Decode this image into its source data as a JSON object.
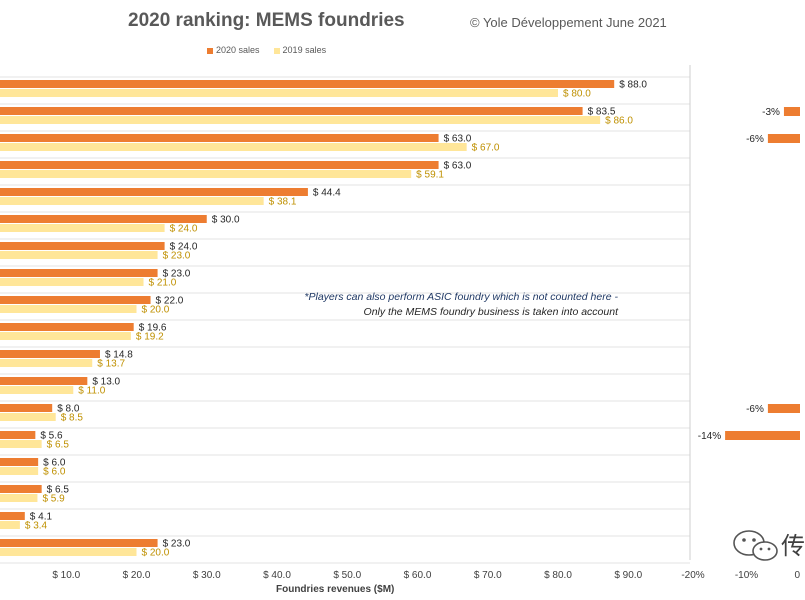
{
  "chart_data": [
    {
      "type": "bar",
      "orientation": "horizontal",
      "title": "2020 ranking: MEMS foundries",
      "credit": "© Yole Développement June 2021",
      "xlabel": "Foundries revenues ($M)",
      "xlim": [
        0,
        100
      ],
      "x_ticks": [
        "$ 10.0",
        "$ 20.0",
        "$ 30.0",
        "$ 40.0",
        "$ 50.0",
        "$ 60.0",
        "$ 70.0",
        "$ 80.0",
        "$ 90.0"
      ],
      "grid": true,
      "legend_position": "top",
      "series": [
        {
          "name": "2020 sales",
          "color": "#ed7d31",
          "values": [
            88.0,
            83.5,
            63.0,
            63.0,
            44.4,
            30.0,
            24.0,
            23.0,
            22.0,
            19.6,
            14.8,
            13.0,
            8.0,
            5.6,
            6.0,
            6.5,
            4.1,
            23.0
          ],
          "labels": [
            "$ 88.0",
            "$ 83.5",
            "$ 63.0",
            "$ 63.0",
            "$ 44.4",
            "$ 30.0",
            "$ 24.0",
            "$ 23.0",
            "$ 22.0",
            "$ 19.6",
            "$ 14.8",
            "$ 13.0",
            "$ 8.0",
            "$ 5.6",
            "$ 6.0",
            "$ 6.5",
            "$ 4.1",
            "$ 23.0"
          ]
        },
        {
          "name": "2019 sales",
          "color": "#ffe699",
          "values": [
            80.0,
            86.0,
            67.0,
            59.1,
            38.1,
            24.0,
            23.0,
            21.0,
            20.0,
            19.2,
            13.7,
            11.0,
            8.5,
            6.5,
            6.0,
            5.9,
            3.4,
            20.0
          ],
          "labels": [
            "$ 80.0",
            "$ 86.0",
            "$ 67.0",
            "$ 59.1",
            "$ 38.1",
            "$ 24.0",
            "$ 23.0",
            "$ 21.0",
            "$ 20.0",
            "$ 19.2",
            "$ 13.7",
            "$ 11.0",
            "$ 8.5",
            "$ 6.5",
            "$ 6.0",
            "$ 5.9",
            "$ 3.4",
            "$ 20.0"
          ]
        }
      ],
      "annotations": [
        "*Players can also perform ASIC foundry which is not counted here -",
        "Only the MEMS foundry business is taken into account"
      ]
    },
    {
      "type": "bar",
      "orientation": "horizontal",
      "xlim": [
        -20,
        0
      ],
      "x_ticks": [
        "-20%",
        "-10%",
        "0"
      ],
      "bars": [
        {
          "row": 1,
          "value": -3,
          "label": "-3%"
        },
        {
          "row": 2,
          "value": -6,
          "label": "-6%"
        },
        {
          "row": 12,
          "value": -6,
          "label": "-6%"
        },
        {
          "row": 13,
          "value": -14,
          "label": "-14%"
        }
      ],
      "color": "#ed7d31"
    }
  ],
  "watermark": {
    "text": "传",
    "icon": "wechat-icon"
  }
}
